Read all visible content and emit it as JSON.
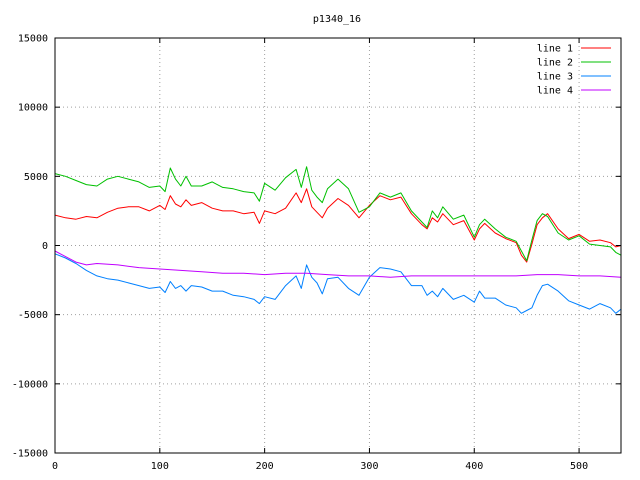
{
  "chart_data": {
    "type": "line",
    "title": "p1340_16",
    "xlabel": "",
    "ylabel": "",
    "xlim": [
      0,
      540
    ],
    "ylim": [
      -15000,
      15000
    ],
    "xticks": [
      0,
      100,
      200,
      300,
      400,
      500
    ],
    "yticks": [
      -15000,
      -10000,
      -5000,
      0,
      5000,
      10000,
      15000
    ],
    "grid": true,
    "legend_position": "top-right",
    "series": [
      {
        "name": "line 1",
        "color": "#ff0000",
        "x": [
          0,
          10,
          20,
          30,
          40,
          50,
          60,
          70,
          80,
          90,
          100,
          105,
          110,
          115,
          120,
          125,
          130,
          140,
          150,
          160,
          170,
          180,
          190,
          195,
          200,
          210,
          220,
          230,
          235,
          240,
          245,
          250,
          255,
          260,
          270,
          280,
          290,
          300,
          310,
          320,
          330,
          340,
          350,
          355,
          360,
          365,
          370,
          380,
          390,
          400,
          405,
          410,
          420,
          430,
          440,
          445,
          450,
          455,
          460,
          465,
          470,
          480,
          490,
          500,
          510,
          520,
          530,
          535,
          540
        ],
        "y": [
          2200,
          2000,
          1900,
          2100,
          2000,
          2400,
          2700,
          2800,
          2800,
          2500,
          2900,
          2600,
          3600,
          3000,
          2800,
          3300,
          2900,
          3100,
          2700,
          2500,
          2500,
          2300,
          2400,
          1600,
          2500,
          2300,
          2700,
          3800,
          3100,
          4100,
          2800,
          2400,
          2000,
          2700,
          3400,
          2900,
          2000,
          2900,
          3600,
          3300,
          3500,
          2300,
          1500,
          1200,
          2000,
          1700,
          2300,
          1500,
          1800,
          400,
          1200,
          1600,
          900,
          500,
          200,
          -700,
          -1200,
          100,
          1500,
          2000,
          2300,
          1200,
          500,
          800,
          300,
          400,
          200,
          -100,
          0
        ]
      },
      {
        "name": "line 2",
        "color": "#00c000",
        "x": [
          0,
          10,
          20,
          30,
          40,
          50,
          60,
          70,
          80,
          90,
          100,
          105,
          110,
          115,
          120,
          125,
          130,
          140,
          150,
          160,
          170,
          180,
          190,
          195,
          200,
          210,
          220,
          230,
          235,
          240,
          245,
          250,
          255,
          260,
          270,
          280,
          290,
          300,
          310,
          320,
          330,
          340,
          350,
          355,
          360,
          365,
          370,
          380,
          390,
          400,
          405,
          410,
          420,
          430,
          440,
          445,
          450,
          455,
          460,
          465,
          470,
          480,
          490,
          500,
          510,
          520,
          530,
          535,
          540
        ],
        "y": [
          5200,
          5000,
          4700,
          4400,
          4300,
          4800,
          5000,
          4800,
          4600,
          4200,
          4300,
          3900,
          5600,
          4800,
          4300,
          5000,
          4300,
          4300,
          4600,
          4200,
          4100,
          3900,
          3800,
          3200,
          4500,
          4000,
          4900,
          5500,
          4200,
          5700,
          4000,
          3500,
          3100,
          4100,
          4800,
          4100,
          2400,
          2800,
          3800,
          3500,
          3800,
          2500,
          1700,
          1300,
          2500,
          2000,
          2800,
          1900,
          2200,
          600,
          1500,
          1900,
          1200,
          600,
          300,
          -400,
          -1100,
          400,
          1800,
          2300,
          2100,
          900,
          400,
          700,
          100,
          0,
          -100,
          -500,
          -700
        ]
      },
      {
        "name": "line 3",
        "color": "#0080ff",
        "x": [
          0,
          10,
          20,
          30,
          40,
          50,
          60,
          70,
          80,
          90,
          100,
          105,
          110,
          115,
          120,
          125,
          130,
          140,
          150,
          160,
          170,
          180,
          190,
          195,
          200,
          210,
          220,
          230,
          235,
          240,
          245,
          250,
          255,
          260,
          270,
          280,
          290,
          300,
          310,
          320,
          330,
          340,
          350,
          355,
          360,
          365,
          370,
          380,
          390,
          400,
          405,
          410,
          420,
          430,
          440,
          445,
          450,
          455,
          460,
          465,
          470,
          480,
          490,
          500,
          510,
          520,
          530,
          535,
          540
        ],
        "y": [
          -600,
          -900,
          -1300,
          -1800,
          -2200,
          -2400,
          -2500,
          -2700,
          -2900,
          -3100,
          -3000,
          -3400,
          -2600,
          -3100,
          -2900,
          -3300,
          -2900,
          -3000,
          -3300,
          -3300,
          -3600,
          -3700,
          -3900,
          -4200,
          -3700,
          -3900,
          -2900,
          -2200,
          -3100,
          -1400,
          -2300,
          -2700,
          -3500,
          -2400,
          -2300,
          -3100,
          -3600,
          -2300,
          -1600,
          -1700,
          -1900,
          -2900,
          -2900,
          -3600,
          -3300,
          -3700,
          -3100,
          -3900,
          -3600,
          -4100,
          -3300,
          -3800,
          -3800,
          -4300,
          -4500,
          -4900,
          -4700,
          -4500,
          -3600,
          -2900,
          -2800,
          -3300,
          -4000,
          -4300,
          -4600,
          -4200,
          -4500,
          -4900,
          -4600
        ]
      },
      {
        "name": "line 4",
        "color": "#c000ff",
        "x": [
          0,
          10,
          20,
          30,
          40,
          60,
          80,
          100,
          120,
          140,
          160,
          180,
          200,
          220,
          240,
          260,
          280,
          300,
          320,
          340,
          360,
          380,
          400,
          420,
          440,
          460,
          480,
          500,
          520,
          540
        ],
        "y": [
          -400,
          -800,
          -1200,
          -1400,
          -1300,
          -1400,
          -1600,
          -1700,
          -1800,
          -1900,
          -2000,
          -2000,
          -2100,
          -2000,
          -2000,
          -2100,
          -2200,
          -2200,
          -2300,
          -2200,
          -2200,
          -2200,
          -2200,
          -2200,
          -2200,
          -2100,
          -2100,
          -2200,
          -2200,
          -2300
        ]
      }
    ]
  }
}
